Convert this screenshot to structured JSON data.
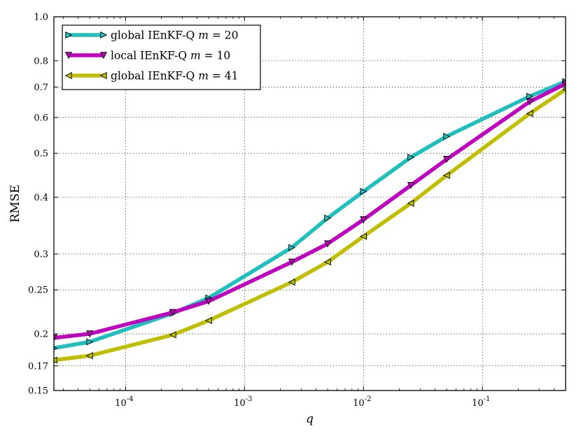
{
  "chart_data": {
    "type": "line",
    "title": "",
    "xlabel": "q",
    "ylabel": "RMSE",
    "xscale": "log",
    "yscale": "log",
    "xlim": [
      2.5e-05,
      0.5
    ],
    "ylim": [
      0.15,
      1.0
    ],
    "grid": true,
    "legend_position": "upper left",
    "x_tick_labels": [
      {
        "value": 0.0001,
        "base": "10",
        "exp": "-4"
      },
      {
        "value": 0.001,
        "base": "10",
        "exp": "-3"
      },
      {
        "value": 0.01,
        "base": "10",
        "exp": "-2"
      },
      {
        "value": 0.1,
        "base": "10",
        "exp": "-1"
      }
    ],
    "y_tick_labels": [
      {
        "value": 0.15,
        "label": "0.15"
      },
      {
        "value": 0.17,
        "label": "0.17"
      },
      {
        "value": 0.2,
        "label": "0.2"
      },
      {
        "value": 0.25,
        "label": "0.25"
      },
      {
        "value": 0.3,
        "label": "0.3"
      },
      {
        "value": 0.4,
        "label": "0.4"
      },
      {
        "value": 0.5,
        "label": "0.5"
      },
      {
        "value": 0.6,
        "label": "0.6"
      },
      {
        "value": 0.7,
        "label": "0.7"
      },
      {
        "value": 0.8,
        "label": "0.8"
      },
      {
        "value": 1.0,
        "label": "1.0"
      }
    ],
    "x": [
      2.5e-05,
      5e-05,
      0.00025,
      0.0005,
      0.0025,
      0.005,
      0.01,
      0.025,
      0.05,
      0.25,
      0.5
    ],
    "series": [
      {
        "name": "global IEnKF-Q",
        "m_label": "m",
        "m_value": "= 20",
        "color": "#1fbfbf",
        "marker": "triangle-right",
        "values": [
          0.186,
          0.192,
          0.222,
          0.24,
          0.31,
          0.36,
          0.412,
          0.49,
          0.545,
          0.668,
          0.72
        ]
      },
      {
        "name": "local IEnKF-Q",
        "m_label": "m",
        "m_value": "= 10",
        "color": "#bf00bf",
        "marker": "triangle-down",
        "values": [
          0.196,
          0.2,
          0.223,
          0.236,
          0.288,
          0.316,
          0.357,
          0.425,
          0.485,
          0.65,
          0.712
        ]
      },
      {
        "name": "global IEnKF-Q",
        "m_label": "m",
        "m_value": "= 41",
        "color": "#bfbf00",
        "marker": "triangle-left",
        "values": [
          0.175,
          0.179,
          0.199,
          0.214,
          0.26,
          0.288,
          0.328,
          0.388,
          0.447,
          0.612,
          0.692
        ]
      }
    ]
  }
}
